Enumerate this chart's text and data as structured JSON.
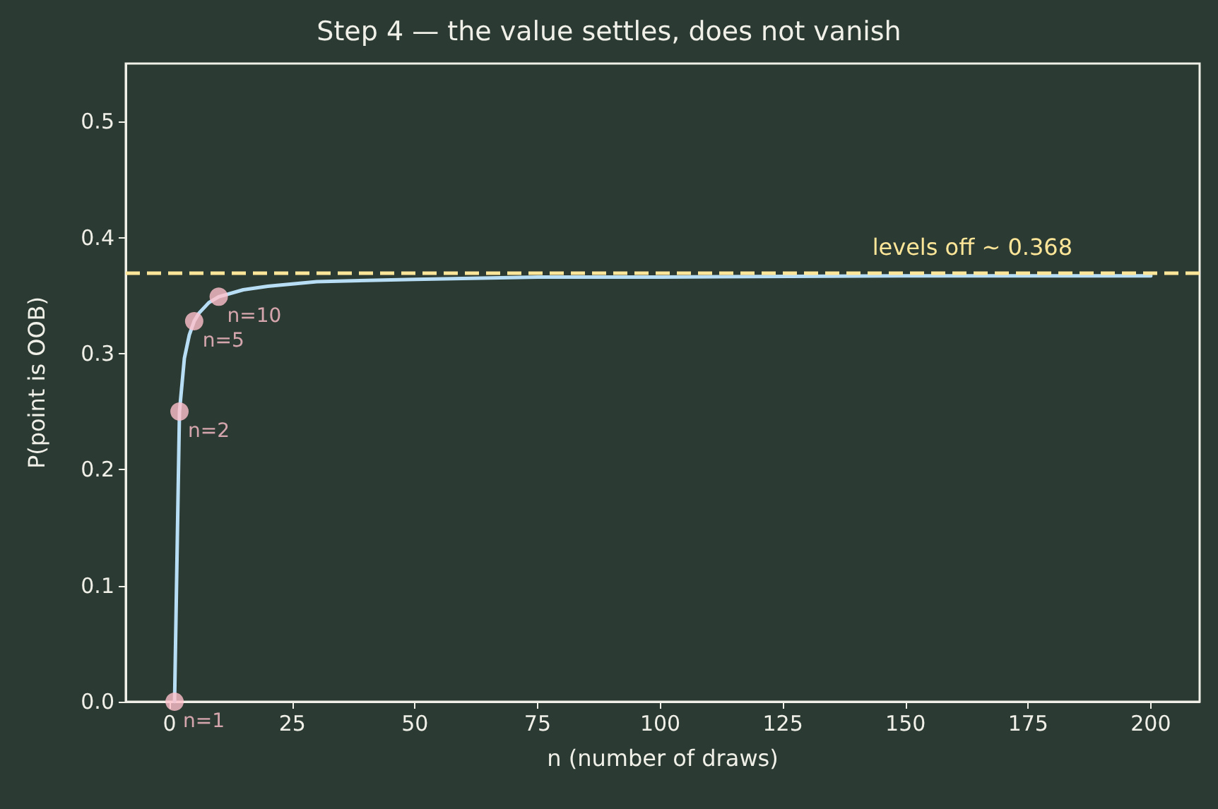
{
  "chart_data": {
    "type": "line",
    "title": "Step 4 — the value settles, does not vanish",
    "xlabel": "n (number of draws)",
    "ylabel": "P(point is OOB)",
    "series": [
      {
        "color": "#b8def5",
        "x": [
          1,
          2,
          3,
          4,
          5,
          6,
          8,
          10,
          15,
          20,
          30,
          50,
          75,
          100,
          150,
          200
        ],
        "values": [
          0,
          0.25,
          0.296,
          0.316,
          0.328,
          0.335,
          0.344,
          0.349,
          0.355,
          0.358,
          0.362,
          0.364,
          0.366,
          0.366,
          0.367,
          0.367
        ],
        "marker": "none",
        "line_style": "solid"
      },
      {
        "type": "scatter",
        "color": "#ffc0cb",
        "x": [
          1,
          2,
          5,
          10
        ],
        "values": [
          0,
          0.25,
          0.328,
          0.349
        ],
        "marker": "circle"
      }
    ],
    "annotations": [
      {
        "text": "n=1",
        "x": 1,
        "y": 0
      },
      {
        "text": "n=2",
        "x": 2,
        "y": 0.25
      },
      {
        "text": "n=5",
        "x": 5,
        "y": 0.328
      },
      {
        "text": "n=10",
        "x": 10,
        "y": 0.349
      }
    ],
    "ref_lines": [
      {
        "axis": "y",
        "value": 0.368,
        "label": "levels off ~ 0.368",
        "color": "#ffe699",
        "line_style": "dashed"
      }
    ],
    "xlim": [
      -8.95,
      209.95
    ],
    "xticks": [
      0,
      25,
      50,
      75,
      100,
      125,
      150,
      175,
      200
    ],
    "ylim": [
      0,
      0.55
    ],
    "yticks": [
      {
        "value": 0,
        "label": "0.0"
      },
      {
        "value": 0.1,
        "label": "0.1"
      },
      {
        "value": 0.2,
        "label": "0.2"
      },
      {
        "value": 0.3,
        "label": "0.3"
      },
      {
        "value": 0.4,
        "label": "0.4"
      },
      {
        "value": 0.5,
        "label": "0.5"
      }
    ],
    "grid": false
  }
}
